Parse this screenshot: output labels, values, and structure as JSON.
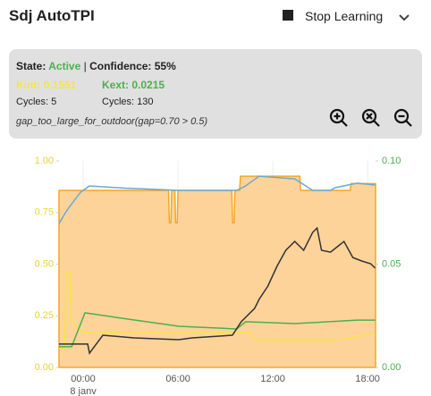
{
  "header": {
    "title": "Sdj AutoTPI",
    "button": "Stop Learning"
  },
  "status": {
    "state_label": "State:",
    "state": "Active",
    "separator": "|",
    "confidence": "Confidence: 55%",
    "kint": "Kint: 0.1551",
    "kext": "Kext: 0.0215",
    "cycles_int": "Cycles: 5",
    "cycles_ext": "Cycles: 130",
    "message": "gap_too_large_for_outdoor(gap=0.70 > 0.5)"
  },
  "chart_data": {
    "type": "line",
    "xlim": [
      -1.53,
      18.5
    ],
    "xticks": [
      {
        "value": 0,
        "label": "00:00"
      },
      {
        "value": 6,
        "label": "06:00"
      },
      {
        "value": 12,
        "label": "12:00"
      },
      {
        "value": 18,
        "label": "18:00"
      }
    ],
    "date_label": "8 janv",
    "ylim": [
      0,
      1
    ],
    "yticks": [
      {
        "value": 0,
        "label": "0.00"
      },
      {
        "value": 0.25,
        "label": "0.25"
      },
      {
        "value": 0.5,
        "label": "0.50"
      },
      {
        "value": 0.75,
        "label": "0.75"
      },
      {
        "value": 1,
        "label": "1.00"
      }
    ],
    "ytick_color": "#e6d43a",
    "y2lim": [
      0,
      0.1
    ],
    "y2ticks": [
      {
        "value": 0,
        "label": "0.00"
      },
      0.05,
      {
        "value": 0.1,
        "label": "0.10"
      }
    ],
    "y2tick_color": "#4caf50",
    "grid": true,
    "series": [
      {
        "color": "#f5a623",
        "fill": "#fdd39a",
        "x": [
          -1.53,
          5.4,
          5.45,
          5.55,
          5.6,
          5.8,
          5.85,
          5.95,
          6.0,
          9.4,
          9.45,
          9.55,
          9.6,
          9.9,
          9.95,
          13.7,
          13.75,
          16.9,
          16.95,
          18.5
        ],
        "values": [
          0.857,
          0.857,
          0.7,
          0.7,
          0.857,
          0.857,
          0.7,
          0.7,
          0.857,
          0.857,
          0.7,
          0.7,
          0.857,
          0.857,
          0.926,
          0.926,
          0.857,
          0.857,
          0.89,
          0.89
        ]
      },
      {
        "color": "#6aa9d8",
        "x": [
          -1.53,
          -1.02,
          -0.17,
          0.4,
          2.66,
          4.35,
          6.05,
          9.72,
          10.28,
          11.13,
          13.39,
          14.52,
          15.65,
          15.93,
          17.34,
          18.47
        ],
        "values": [
          0.697,
          0.762,
          0.848,
          0.879,
          0.868,
          0.863,
          0.857,
          0.857,
          0.879,
          0.926,
          0.913,
          0.857,
          0.857,
          0.87,
          0.892,
          0.883
        ]
      },
      {
        "color": "#f5e642",
        "x": [
          -1.53,
          -1.19,
          -1.07,
          -0.85,
          -0.73,
          0,
          10.56,
          10.85,
          16.21,
          17.06,
          17.63,
          18.47
        ],
        "values": [
          0.091,
          0.091,
          0.459,
          0.459,
          0.221,
          0.169,
          0.169,
          0.134,
          0.134,
          0.143,
          0.156,
          0.156
        ]
      },
      {
        "color": "#4caf50",
        "axis": "y2",
        "x": [
          -1.53,
          -0.73,
          0.11,
          0.96,
          2.09,
          6.05,
          9.72,
          10.28,
          13.39,
          17.34,
          18.47
        ],
        "values": [
          0.01,
          0.01,
          0.0264,
          0.0255,
          0.0242,
          0.0199,
          0.0186,
          0.0221,
          0.0212,
          0.0229,
          0.0229
        ]
      },
      {
        "color": "#333333",
        "axis": "y2",
        "x": [
          -1.53,
          0.28,
          0.4,
          1.24,
          3.22,
          6.05,
          6.89,
          9.44,
          10.0,
          10.85,
          11.13,
          11.69,
          12.26,
          12.82,
          13.39,
          13.95,
          14.52,
          14.8,
          15.08,
          15.65,
          16.5,
          17.06,
          17.63,
          18.19,
          18.47
        ],
        "values": [
          0.0113,
          0.0113,
          0.0069,
          0.0156,
          0.0143,
          0.0134,
          0.0143,
          0.0156,
          0.0221,
          0.0286,
          0.0329,
          0.0394,
          0.0489,
          0.0567,
          0.061,
          0.0567,
          0.0654,
          0.0675,
          0.0567,
          0.0558,
          0.061,
          0.0532,
          0.0515,
          0.0502,
          0.0481
        ]
      }
    ]
  }
}
